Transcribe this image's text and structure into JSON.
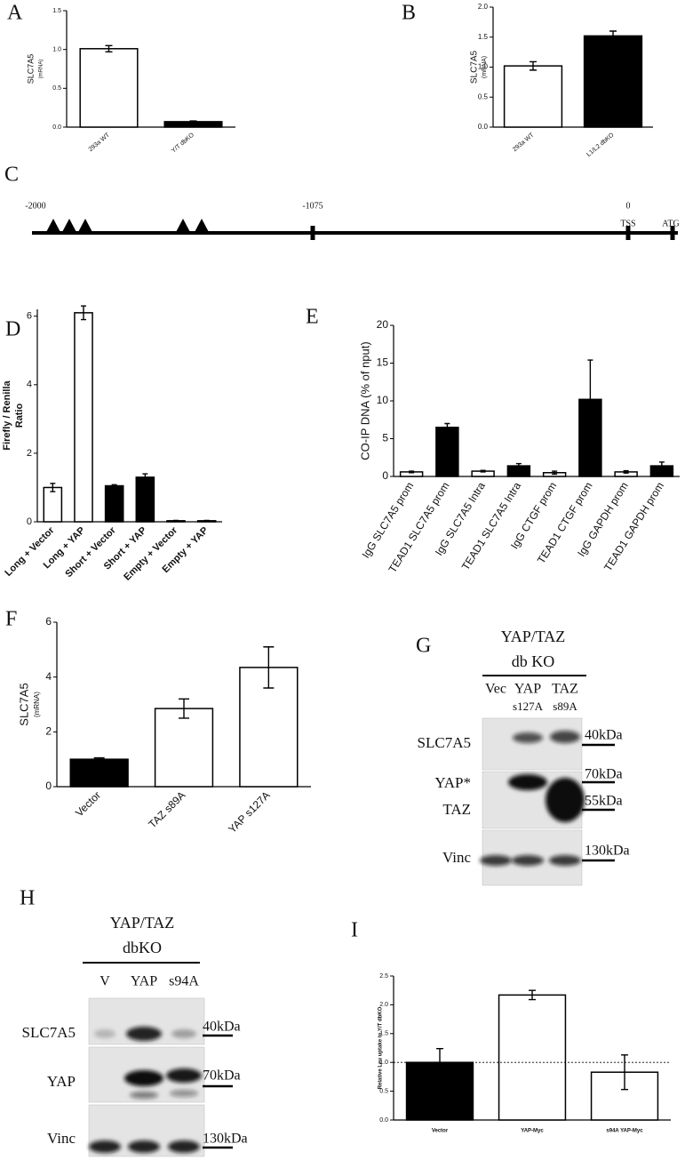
{
  "chart_data": [
    {
      "panel": "A",
      "type": "bar",
      "ylabel": [
        "SLC7A5",
        "(mRNA)"
      ],
      "categories": [
        "293a WT",
        "Y/T dbKO"
      ],
      "values": [
        1.01,
        0.07
      ],
      "errors": [
        0.04,
        0.01
      ],
      "colors": [
        "#ffffff",
        "#000000"
      ],
      "ylim": [
        0,
        1.5
      ],
      "yticks": [
        {
          "value": 0,
          "label": "0.0"
        },
        0.5,
        {
          "value": 1,
          "label": "1.0"
        },
        1.5
      ]
    },
    {
      "panel": "B",
      "type": "bar",
      "ylabel": [
        "SLC7A5",
        "(mRNA)"
      ],
      "categories": [
        "293a WT",
        "L1/L2 dbKO"
      ],
      "values": [
        1.02,
        1.52
      ],
      "errors": [
        0.07,
        0.08
      ],
      "colors": [
        "#ffffff",
        "#000000"
      ],
      "ylim": [
        0,
        2
      ],
      "yticks": [
        {
          "value": 0,
          "label": "0.0"
        },
        0.5,
        {
          "value": 1,
          "label": "1.0"
        },
        1.5,
        {
          "value": 2,
          "label": "2.0"
        }
      ]
    },
    {
      "panel": "D",
      "type": "bar",
      "ylabel": [
        "Firefly / Renilla",
        "Ratio"
      ],
      "categories": [
        "Long + Vector",
        "Long + YAP",
        "Short + Vector",
        "Short + YAP",
        "Empty + Vector",
        "Empty + YAP"
      ],
      "values": [
        1.0,
        6.1,
        1.05,
        1.3,
        0.03,
        0.03
      ],
      "errors": [
        0.12,
        0.2,
        0.03,
        0.1,
        0.01,
        0.01
      ],
      "colors": [
        "#ffffff",
        "#ffffff",
        "#000000",
        "#000000",
        "#ffffff",
        "#ffffff"
      ],
      "ylim": [
        0,
        6.2
      ],
      "yticks": [
        0,
        2,
        4,
        6
      ]
    },
    {
      "panel": "E",
      "type": "bar",
      "ylabel": [
        "CO-IP DNA (% of nput)"
      ],
      "categories": [
        "IgG SLC7A5 prom",
        "TEAD1 SLC7A5 prom",
        "IgG SLC7A5 Intra",
        "TEAD1 SLC7A5 Intra",
        "IgG CTGF prom",
        "TEAD1 CTGF prom",
        "IgG GAPDH prom",
        "TEAD1 GAPDH prom"
      ],
      "values": [
        0.6,
        6.5,
        0.7,
        1.4,
        0.5,
        10.2,
        0.6,
        1.4
      ],
      "errors": [
        0.1,
        0.5,
        0.1,
        0.3,
        0.2,
        5.2,
        0.15,
        0.5
      ],
      "colors": [
        "#ffffff",
        "#000000",
        "#ffffff",
        "#000000",
        "#ffffff",
        "#000000",
        "#ffffff",
        "#000000"
      ],
      "ylim": [
        0,
        20
      ],
      "yticks": [
        0,
        5,
        10,
        15,
        20
      ]
    },
    {
      "panel": "F",
      "type": "bar",
      "ylabel": [
        "SLC7A5",
        "(mRNA)"
      ],
      "categories": [
        "Vector",
        "TAZ s89A",
        "YAP s127A"
      ],
      "values": [
        1.0,
        2.85,
        4.35
      ],
      "errors": [
        0.05,
        0.35,
        0.75
      ],
      "colors": [
        "#000000",
        "#ffffff",
        "#ffffff"
      ],
      "ylim": [
        0,
        6
      ],
      "yticks": [
        0,
        2,
        4,
        6
      ]
    },
    {
      "panel": "I",
      "type": "bar",
      "ylabel": [
        "Relative Leu uptake to Y/T dbKO"
      ],
      "categories": [
        "Vector",
        "YAP-Myc",
        "s94A YAP-Myc"
      ],
      "values": [
        1.0,
        2.17,
        0.83
      ],
      "errors": [
        0.24,
        0.08,
        0.3
      ],
      "colors": [
        "#000000",
        "#ffffff",
        "#ffffff"
      ],
      "reference_line": 1,
      "ylim": [
        0,
        2.5
      ],
      "yticks": [
        {
          "value": 0,
          "label": "0.0"
        },
        0.5,
        {
          "value": 1,
          "label": "1.0"
        },
        1.5,
        {
          "value": 2,
          "label": "2.0"
        },
        2.5
      ]
    }
  ],
  "promoter": {
    "panel": "C",
    "labels": [
      "-2000",
      "-1075",
      "0",
      "TSS",
      "ATG"
    ]
  },
  "blots": [
    {
      "panel": "G",
      "header": [
        "YAP/TAZ",
        "db KO"
      ],
      "lanes": [
        "Vec",
        "YAP",
        "TAZ"
      ],
      "lane_mutations": [
        "s127A",
        "s89A"
      ],
      "rows": [
        "SLC7A5",
        "YAP*",
        "TAZ",
        "Vinc"
      ],
      "markers": [
        "40kDa",
        "70kDa",
        "55kDa",
        "130kDa"
      ]
    },
    {
      "panel": "H",
      "header": [
        "YAP/TAZ",
        "dbKO"
      ],
      "lanes": [
        "V",
        "YAP",
        "s94A"
      ],
      "rows": [
        "SLC7A5",
        "YAP",
        "Vinc"
      ],
      "markers": [
        "40kDa",
        "70kDa",
        "130kDa"
      ]
    }
  ]
}
